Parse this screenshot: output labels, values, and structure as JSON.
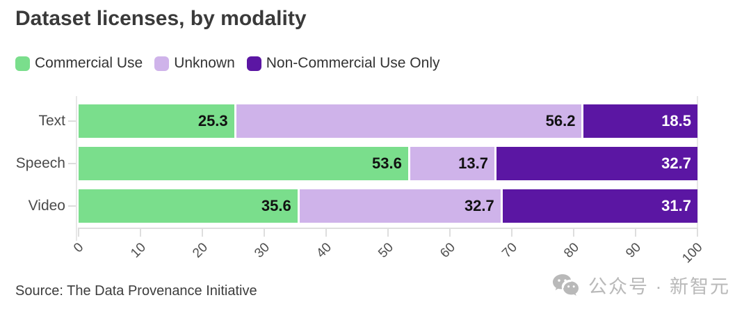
{
  "title": "Dataset licenses, by modality",
  "source": "Source: The Data Provenance Initiative",
  "watermark": {
    "icon": "wechat-icon",
    "text": "公众号 · 新智元",
    "color": "#b9b9b9"
  },
  "colors": {
    "commercial": "#7ade8c",
    "unknown": "#cfb3ea",
    "non_commercial": "#5b16a3",
    "title_text": "#3a3a3a",
    "axis_text": "#4f4f4f"
  },
  "chart_data": {
    "type": "bar",
    "orientation": "horizontal",
    "stacked": true,
    "title": "Dataset licenses, by modality",
    "categories": [
      "Text",
      "Speech",
      "Video"
    ],
    "series": [
      {
        "name": "Commercial Use",
        "color": "#7ade8c",
        "label_color": "#111111",
        "values": [
          25.3,
          53.6,
          35.6
        ]
      },
      {
        "name": "Unknown",
        "color": "#cfb3ea",
        "label_color": "#111111",
        "values": [
          56.2,
          13.7,
          32.7
        ]
      },
      {
        "name": "Non-Commercial Use Only",
        "color": "#5b16a3",
        "label_color": "#ffffff",
        "values": [
          18.5,
          32.7,
          31.7
        ]
      }
    ],
    "xlabel": "",
    "ylabel": "",
    "xlim": [
      0,
      100
    ],
    "x_ticks": [
      0,
      10,
      20,
      30,
      40,
      50,
      60,
      70,
      80,
      90,
      100
    ],
    "x_tick_rotation_deg": 45,
    "legend_position": "top",
    "grid": false
  }
}
